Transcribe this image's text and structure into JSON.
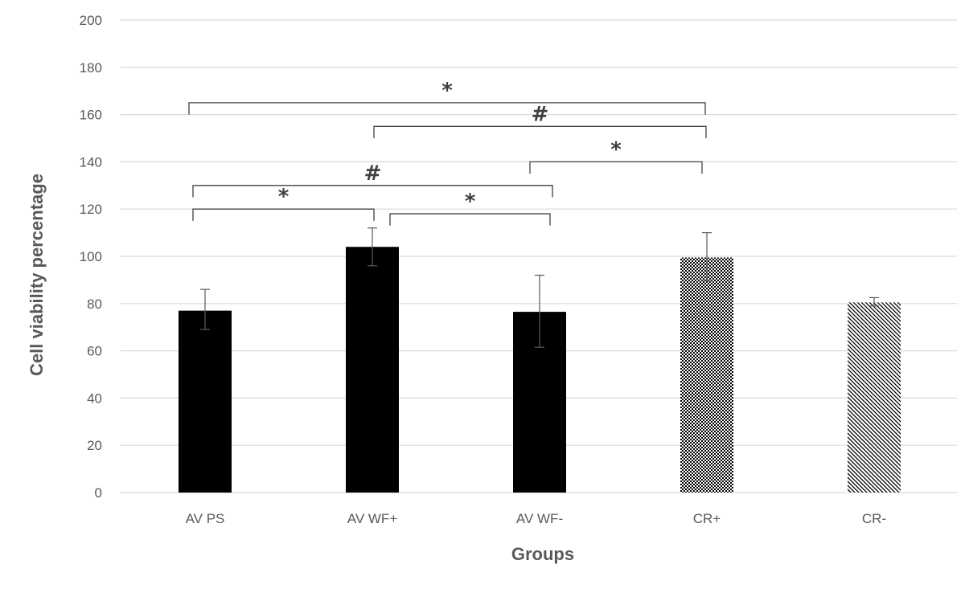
{
  "chart_data": {
    "type": "bar",
    "title": "",
    "xlabel": "Groups",
    "ylabel": "Cell viability percentage",
    "ylim": [
      0,
      200
    ],
    "yticks": [
      0,
      20,
      40,
      60,
      80,
      100,
      120,
      140,
      160,
      180,
      200
    ],
    "grid": true,
    "categories": [
      "AV PS",
      "AV WF+",
      "AV WF-",
      "CR+",
      "CR-"
    ],
    "values": [
      77,
      104,
      76.5,
      99.5,
      80.5
    ],
    "error_bars": [
      {
        "low": 69,
        "high": 86
      },
      {
        "low": 96,
        "high": 112
      },
      {
        "low": 61.5,
        "high": 92
      },
      {
        "low": 89.5,
        "high": 110
      },
      {
        "low": 79,
        "high": 82.5
      }
    ],
    "bar_fills": [
      "solid-black",
      "solid-black",
      "solid-black",
      "crosshatch",
      "diagonal-hatch"
    ],
    "significance": [
      {
        "from": "AV PS",
        "to": "CR+",
        "symbol": "*",
        "level": 165
      },
      {
        "from": "AV WF+",
        "to": "CR+",
        "symbol": "#",
        "level": 155
      },
      {
        "from": "AV WF-",
        "to": "CR+",
        "symbol": "*",
        "level": 140
      },
      {
        "from": "AV PS",
        "to": "AV WF-",
        "symbol": "#",
        "level": 130
      },
      {
        "from": "AV PS",
        "to": "AV WF+",
        "symbol": "*",
        "level": 120
      },
      {
        "from": "AV WF+",
        "to": "AV WF-",
        "symbol": "*",
        "level": 118
      }
    ],
    "colors": {
      "bar": "#000000",
      "grid": "#d9d9d9",
      "text": "#595959",
      "bracket": "#404040"
    }
  }
}
